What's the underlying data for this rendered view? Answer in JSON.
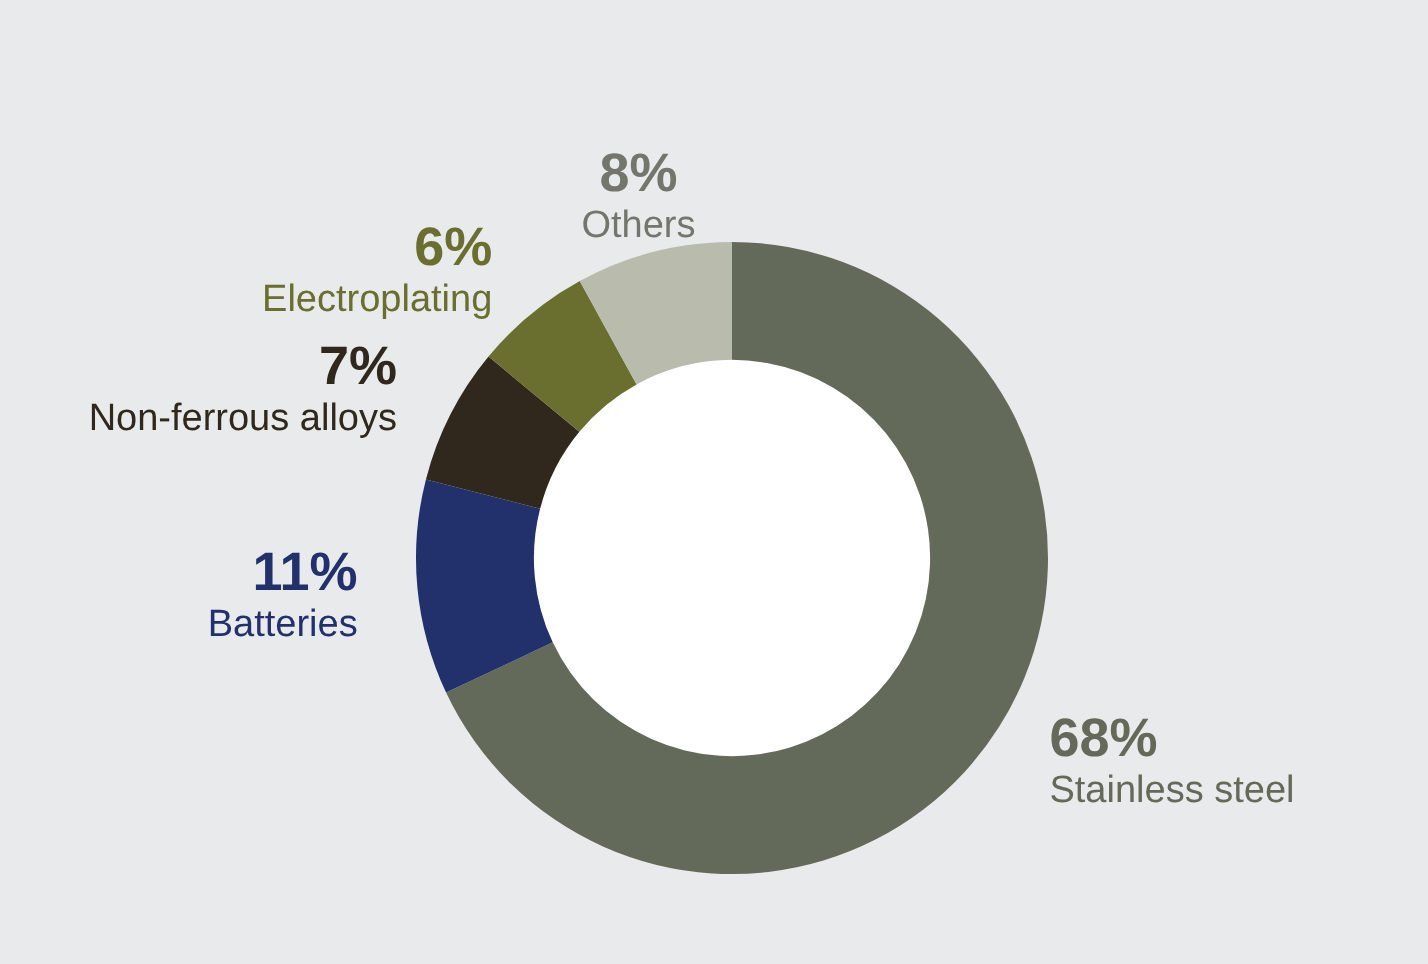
{
  "chart_data": {
    "type": "donut",
    "categories": [
      "Stainless steel",
      "Batteries",
      "Non-ferrous alloys",
      "Electroplating",
      "Others"
    ],
    "values": [
      68,
      11,
      7,
      6,
      8
    ],
    "value_labels": [
      "68%",
      "11%",
      "7%",
      "6%",
      "8%"
    ],
    "colors": [
      "#646a59",
      "#22306b",
      "#30281c",
      "#6a6e2f",
      "#b9bcad"
    ],
    "legend": false
  }
}
